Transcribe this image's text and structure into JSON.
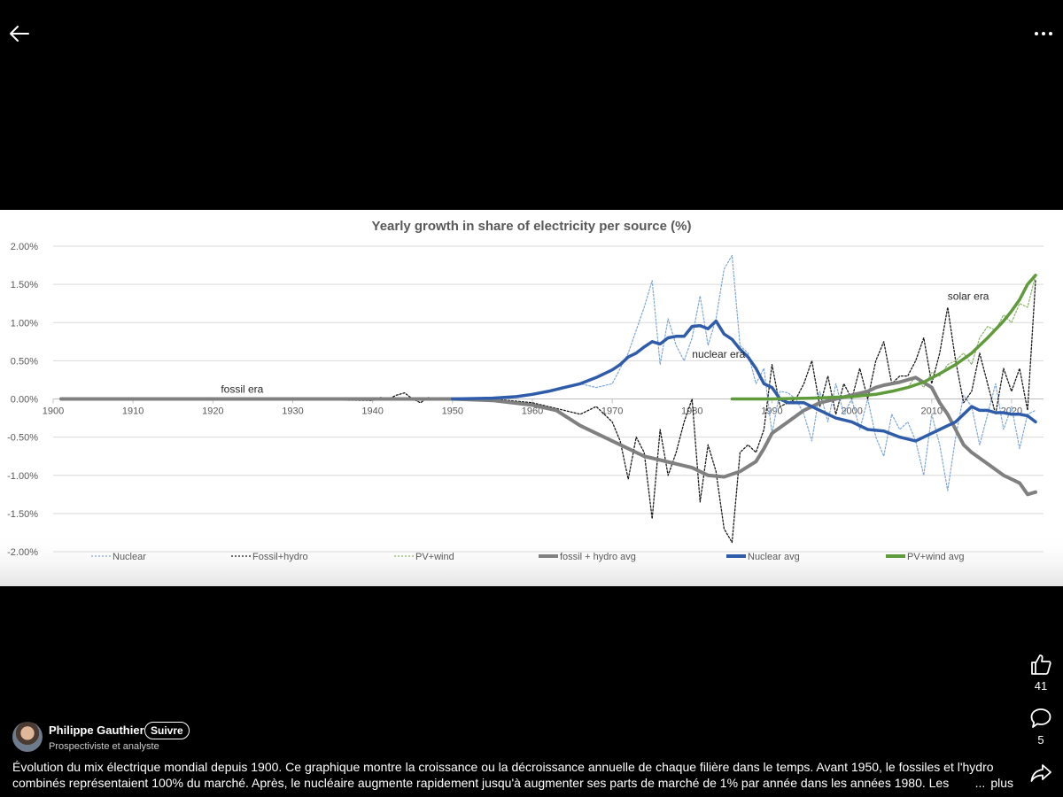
{
  "icons": {
    "back": "arrow-left-icon",
    "more": "ellipsis-icon",
    "like": "thumbs-up-icon",
    "comment": "comment-icon",
    "share": "share-icon"
  },
  "actions": {
    "likes": "41",
    "comments": "5"
  },
  "author": {
    "name": "Philippe Gauthier",
    "follow": "Suivre",
    "title": "Prospectiviste et analyste"
  },
  "caption": {
    "text": "Évolution du mix électrique mondial depuis 1900. Ce graphique montre la croissance ou la décroissance annuelle de chaque filière dans le temps. Avant 1950, le fossiles et l'hydro combinés représentaient 100% du marché. Après, le nucléaire augmente rapidement jusqu'à augmenter ses parts de marché de 1% par année dans les années 1980. Les",
    "ellipsis": "...",
    "more": "plus"
  },
  "colors": {
    "nuclear": "#7fa6d6",
    "fossil": "#1a1a1a",
    "pvwind": "#8ab36b",
    "fossil_avg": "#808080",
    "nuclear_avg": "#2f5caa",
    "pvwind_avg": "#5f9b3a",
    "grid": "#d9d9d9"
  },
  "chart_data": {
    "type": "line",
    "title": "Yearly growth in share of electricity per source (%)",
    "xlabel": "",
    "ylabel": "",
    "xlim": [
      1900,
      2024
    ],
    "ylim": [
      -2,
      2
    ],
    "xticks": [
      1900,
      1910,
      1920,
      1930,
      1940,
      1950,
      1960,
      1970,
      1980,
      1990,
      2000,
      2010,
      2020
    ],
    "yticks": [
      "2.00%",
      "1.50%",
      "1.00%",
      "0.50%",
      "0.00%",
      "-0.50%",
      "-1.00%",
      "-1.50%",
      "-2.00%"
    ],
    "ytick_values": [
      2,
      1.5,
      1,
      0.5,
      0,
      -0.5,
      -1,
      -1.5,
      -2
    ],
    "grid": true,
    "legend_position": "bottom",
    "annotations": [
      {
        "text": "fossil era",
        "x": 1921,
        "y": 0.08
      },
      {
        "text": "nuclear era",
        "x": 1980,
        "y": 0.54
      },
      {
        "text": "solar era",
        "x": 2012,
        "y": 1.3
      }
    ],
    "series": [
      {
        "name": "Nuclear",
        "style": "dotted-thin",
        "x": [
          1950,
          1955,
          1960,
          1962,
          1964,
          1966,
          1968,
          1970,
          1972,
          1973,
          1974,
          1975,
          1976,
          1977,
          1978,
          1979,
          1980,
          1981,
          1982,
          1983,
          1984,
          1985,
          1986,
          1987,
          1988,
          1989,
          1990,
          1991,
          1992,
          1993,
          1994,
          1995,
          1996,
          1997,
          1998,
          1999,
          2000,
          2001,
          2002,
          2003,
          2004,
          2005,
          2006,
          2007,
          2008,
          2009,
          2010,
          2011,
          2012,
          2013,
          2014,
          2015,
          2016,
          2017,
          2018,
          2019,
          2020,
          2021,
          2022,
          2023
        ],
        "y": [
          0,
          0,
          0.05,
          0.1,
          0.15,
          0.2,
          0.15,
          0.2,
          0.6,
          0.9,
          1.2,
          1.55,
          0.45,
          1.05,
          0.7,
          0.5,
          0.8,
          1.35,
          0.7,
          1.05,
          1.7,
          1.88,
          0.7,
          0.6,
          0.2,
          0.4,
          -0.45,
          0.1,
          0.08,
          0.0,
          -0.2,
          -0.55,
          0.1,
          -0.3,
          0.2,
          -0.2,
          0.0,
          -0.4,
          0.0,
          -0.5,
          -0.75,
          -0.2,
          -0.4,
          -0.3,
          -0.55,
          -1.0,
          -0.2,
          -0.6,
          -1.2,
          -0.5,
          0.05,
          -0.1,
          -0.6,
          -0.2,
          0.2,
          -0.4,
          -0.1,
          -0.65,
          -0.2,
          -0.15
        ]
      },
      {
        "name": "Fossil+hydro",
        "style": "dotted",
        "x": [
          1901,
          1920,
          1940,
          1941,
          1942,
          1943,
          1944,
          1945,
          1946,
          1947,
          1948,
          1950,
          1955,
          1960,
          1962,
          1964,
          1966,
          1968,
          1970,
          1971,
          1972,
          1973,
          1974,
          1975,
          1976,
          1977,
          1978,
          1979,
          1980,
          1981,
          1982,
          1983,
          1984,
          1985,
          1986,
          1987,
          1988,
          1989,
          1990,
          1991,
          1992,
          1993,
          1994,
          1995,
          1996,
          1997,
          1998,
          1999,
          2000,
          2001,
          2002,
          2003,
          2004,
          2005,
          2006,
          2007,
          2008,
          2009,
          2010,
          2011,
          2012,
          2013,
          2014,
          2015,
          2016,
          2017,
          2018,
          2019,
          2020,
          2021,
          2022,
          2023
        ],
        "y": [
          0,
          0,
          -0.02,
          0.02,
          0.0,
          0.05,
          0.08,
          0.0,
          -0.05,
          0.02,
          0.0,
          0.0,
          0.0,
          -0.05,
          -0.1,
          -0.15,
          -0.2,
          -0.1,
          -0.3,
          -0.55,
          -1.05,
          -0.5,
          -0.7,
          -1.57,
          -0.4,
          -1.0,
          -0.7,
          -0.3,
          0.0,
          -1.35,
          -0.6,
          -0.95,
          -1.7,
          -1.88,
          -0.7,
          -0.6,
          -0.7,
          -0.4,
          0.45,
          -0.1,
          -0.05,
          0.0,
          0.2,
          0.5,
          -0.1,
          0.3,
          -0.2,
          0.2,
          0.0,
          0.4,
          0.0,
          0.5,
          0.75,
          0.2,
          0.3,
          0.3,
          0.5,
          0.8,
          0.2,
          0.6,
          1.2,
          0.5,
          -0.05,
          0.1,
          0.6,
          0.2,
          -0.2,
          0.4,
          0.1,
          0.4,
          -0.15,
          1.55
        ]
      },
      {
        "name": "PV+wind",
        "style": "dotted-thin",
        "x": [
          1985,
          1990,
          1995,
          2000,
          2003,
          2005,
          2007,
          2008,
          2009,
          2010,
          2011,
          2012,
          2013,
          2014,
          2015,
          2016,
          2017,
          2018,
          2019,
          2020,
          2021,
          2022,
          2023
        ],
        "y": [
          0,
          0,
          0,
          0.02,
          0.05,
          0.1,
          0.15,
          0.3,
          0.15,
          0.35,
          0.3,
          0.45,
          0.5,
          0.6,
          0.45,
          0.8,
          0.95,
          0.9,
          1.1,
          1.0,
          1.25,
          1.2,
          1.62
        ]
      },
      {
        "name": "fossil + hydro avg",
        "style": "solid-thick",
        "x": [
          1901,
          1950,
          1955,
          1960,
          1963,
          1966,
          1968,
          1970,
          1972,
          1974,
          1976,
          1978,
          1980,
          1982,
          1984,
          1986,
          1988,
          1989,
          1990,
          1992,
          1994,
          1996,
          1998,
          2000,
          2002,
          2003,
          2004,
          2005,
          2006,
          2008,
          2010,
          2011,
          2012,
          2013,
          2014,
          2015,
          2017,
          2019,
          2021,
          2022,
          2023
        ],
        "y": [
          0,
          0,
          -0.02,
          -0.08,
          -0.15,
          -0.35,
          -0.45,
          -0.55,
          -0.65,
          -0.75,
          -0.8,
          -0.85,
          -0.9,
          -1.0,
          -1.02,
          -0.95,
          -0.82,
          -0.65,
          -0.45,
          -0.3,
          -0.15,
          -0.05,
          0.0,
          0.05,
          0.1,
          0.15,
          0.18,
          0.2,
          0.22,
          0.28,
          0.15,
          -0.05,
          -0.2,
          -0.4,
          -0.6,
          -0.7,
          -0.85,
          -1.0,
          -1.1,
          -1.25,
          -1.22
        ]
      },
      {
        "name": "Nuclear avg",
        "style": "solid-thick",
        "x": [
          1950,
          1955,
          1958,
          1960,
          1962,
          1964,
          1966,
          1968,
          1970,
          1971,
          1972,
          1973,
          1974,
          1975,
          1976,
          1977,
          1978,
          1979,
          1980,
          1981,
          1982,
          1983,
          1984,
          1985,
          1986,
          1987,
          1988,
          1989,
          1990,
          1991,
          1992,
          1994,
          1996,
          1998,
          2000,
          2002,
          2004,
          2006,
          2008,
          2010,
          2011,
          2012,
          2013,
          2014,
          2015,
          2016,
          2017,
          2018,
          2019,
          2020,
          2021,
          2022,
          2023
        ],
        "y": [
          0,
          0.01,
          0.03,
          0.06,
          0.1,
          0.15,
          0.2,
          0.28,
          0.38,
          0.45,
          0.55,
          0.6,
          0.68,
          0.75,
          0.72,
          0.8,
          0.82,
          0.82,
          0.95,
          0.96,
          0.92,
          1.02,
          0.85,
          0.78,
          0.65,
          0.55,
          0.4,
          0.2,
          0.15,
          0.0,
          -0.05,
          -0.05,
          -0.15,
          -0.25,
          -0.3,
          -0.4,
          -0.42,
          -0.5,
          -0.55,
          -0.45,
          -0.4,
          -0.35,
          -0.3,
          -0.2,
          -0.1,
          -0.15,
          -0.15,
          -0.18,
          -0.18,
          -0.2,
          -0.2,
          -0.22,
          -0.3
        ]
      },
      {
        "name": "PV+wind avg",
        "style": "solid-thick",
        "x": [
          1985,
          1990,
          1995,
          2000,
          2003,
          2005,
          2007,
          2009,
          2011,
          2013,
          2015,
          2017,
          2019,
          2020,
          2021,
          2022,
          2023
        ],
        "y": [
          0,
          0,
          0.01,
          0.03,
          0.06,
          0.1,
          0.15,
          0.22,
          0.33,
          0.45,
          0.6,
          0.8,
          1.02,
          1.15,
          1.3,
          1.5,
          1.62
        ]
      }
    ]
  }
}
